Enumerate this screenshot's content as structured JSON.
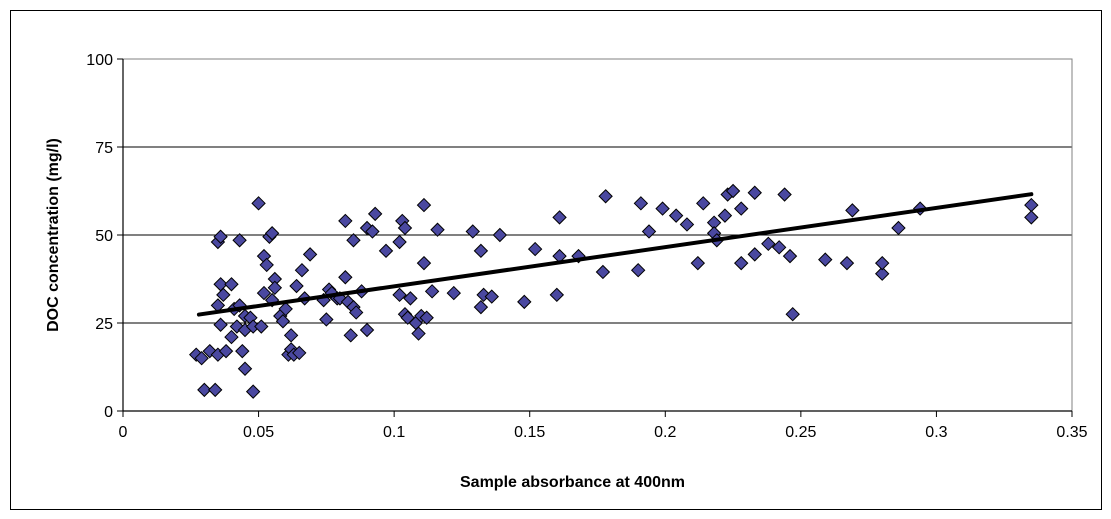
{
  "chart_data": {
    "type": "scatter",
    "title": "",
    "xlabel": "Sample absorbance at 400nm",
    "ylabel": "DOC concentration (mg/l)",
    "xlim": [
      0,
      0.35
    ],
    "ylim": [
      0,
      100
    ],
    "x_ticks": [
      "0",
      "0.05",
      "0.1",
      "0.15",
      "0.2",
      "0.25",
      "0.3",
      "0.35"
    ],
    "y_ticks": [
      "0",
      "25",
      "50",
      "75",
      "100"
    ],
    "grid": "horizontal major gridlines",
    "legend": "none",
    "marker_color": "#4a48a0",
    "trendline": {
      "x": [
        0.028,
        0.335
      ],
      "y": [
        27.4,
        61.6
      ]
    },
    "points": [
      [
        0.027,
        16
      ],
      [
        0.029,
        15
      ],
      [
        0.03,
        6
      ],
      [
        0.032,
        17
      ],
      [
        0.034,
        6
      ],
      [
        0.035,
        16
      ],
      [
        0.035,
        30
      ],
      [
        0.035,
        48
      ],
      [
        0.036,
        49.5
      ],
      [
        0.036,
        36
      ],
      [
        0.036,
        24.5
      ],
      [
        0.037,
        33
      ],
      [
        0.038,
        17
      ],
      [
        0.04,
        21
      ],
      [
        0.04,
        36
      ],
      [
        0.041,
        29
      ],
      [
        0.042,
        24
      ],
      [
        0.043,
        30
      ],
      [
        0.043,
        48.5
      ],
      [
        0.044,
        17
      ],
      [
        0.045,
        23
      ],
      [
        0.045,
        27
      ],
      [
        0.045,
        12
      ],
      [
        0.047,
        26.5
      ],
      [
        0.048,
        24
      ],
      [
        0.048,
        5.5
      ],
      [
        0.05,
        59
      ],
      [
        0.051,
        24
      ],
      [
        0.052,
        33.5
      ],
      [
        0.052,
        44
      ],
      [
        0.053,
        41.5
      ],
      [
        0.054,
        49.5
      ],
      [
        0.055,
        50.5
      ],
      [
        0.055,
        31.5
      ],
      [
        0.056,
        37.5
      ],
      [
        0.056,
        35
      ],
      [
        0.058,
        27
      ],
      [
        0.059,
        25.5
      ],
      [
        0.06,
        29
      ],
      [
        0.061,
        16
      ],
      [
        0.062,
        21.5
      ],
      [
        0.062,
        17.5
      ],
      [
        0.063,
        16
      ],
      [
        0.064,
        35.5
      ],
      [
        0.065,
        16.5
      ],
      [
        0.066,
        40
      ],
      [
        0.067,
        32
      ],
      [
        0.069,
        44.5
      ],
      [
        0.074,
        31.5
      ],
      [
        0.075,
        26
      ],
      [
        0.076,
        34.5
      ],
      [
        0.077,
        33.5
      ],
      [
        0.079,
        32
      ],
      [
        0.08,
        32
      ],
      [
        0.082,
        54
      ],
      [
        0.082,
        38
      ],
      [
        0.083,
        31
      ],
      [
        0.084,
        21.5
      ],
      [
        0.085,
        29.5
      ],
      [
        0.085,
        48.5
      ],
      [
        0.086,
        28
      ],
      [
        0.088,
        34
      ],
      [
        0.09,
        23
      ],
      [
        0.09,
        52
      ],
      [
        0.092,
        51
      ],
      [
        0.093,
        56
      ],
      [
        0.097,
        45.5
      ],
      [
        0.102,
        33
      ],
      [
        0.102,
        48
      ],
      [
        0.103,
        54
      ],
      [
        0.104,
        52
      ],
      [
        0.104,
        27.5
      ],
      [
        0.105,
        26.5
      ],
      [
        0.106,
        32
      ],
      [
        0.108,
        25
      ],
      [
        0.109,
        22
      ],
      [
        0.11,
        27
      ],
      [
        0.111,
        42
      ],
      [
        0.111,
        58.5
      ],
      [
        0.112,
        26.5
      ],
      [
        0.114,
        34
      ],
      [
        0.116,
        51.5
      ],
      [
        0.122,
        33.5
      ],
      [
        0.129,
        51
      ],
      [
        0.132,
        29.5
      ],
      [
        0.132,
        45.5
      ],
      [
        0.133,
        33
      ],
      [
        0.136,
        32.5
      ],
      [
        0.139,
        50
      ],
      [
        0.148,
        31
      ],
      [
        0.152,
        46
      ],
      [
        0.16,
        33
      ],
      [
        0.161,
        55
      ],
      [
        0.161,
        44
      ],
      [
        0.168,
        44
      ],
      [
        0.177,
        39.5
      ],
      [
        0.178,
        61
      ],
      [
        0.19,
        40
      ],
      [
        0.191,
        59
      ],
      [
        0.194,
        51
      ],
      [
        0.199,
        57.5
      ],
      [
        0.204,
        55.5
      ],
      [
        0.208,
        53
      ],
      [
        0.212,
        42
      ],
      [
        0.214,
        59
      ],
      [
        0.218,
        53.5
      ],
      [
        0.218,
        50.5
      ],
      [
        0.219,
        48.5
      ],
      [
        0.222,
        55.5
      ],
      [
        0.223,
        61.5
      ],
      [
        0.225,
        62.5
      ],
      [
        0.228,
        42
      ],
      [
        0.228,
        57.5
      ],
      [
        0.233,
        62
      ],
      [
        0.233,
        44.5
      ],
      [
        0.238,
        47.5
      ],
      [
        0.242,
        46.5
      ],
      [
        0.244,
        61.5
      ],
      [
        0.246,
        44
      ],
      [
        0.247,
        27.5
      ],
      [
        0.259,
        43
      ],
      [
        0.267,
        42
      ],
      [
        0.269,
        57
      ],
      [
        0.28,
        39
      ],
      [
        0.28,
        42
      ],
      [
        0.286,
        52
      ],
      [
        0.294,
        57.5
      ],
      [
        0.335,
        58.5
      ],
      [
        0.335,
        55
      ]
    ]
  }
}
